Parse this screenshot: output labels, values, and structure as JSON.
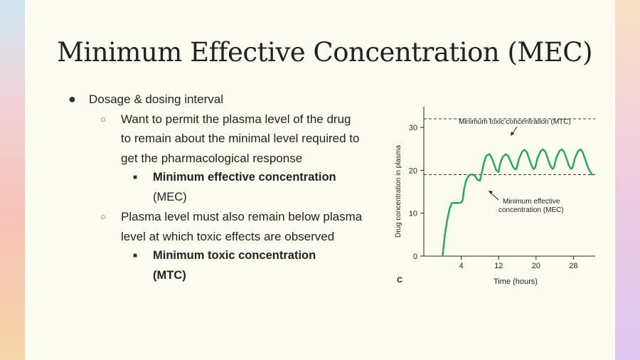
{
  "slide": {
    "title": "Minimum Effective Concentration (MEC)",
    "bullets": [
      {
        "level": 1,
        "text": "Dosage & dosing interval"
      },
      {
        "level": 2,
        "text": "Want to permit the plasma level of the drug to remain about the minimal level required to get the pharmacological response"
      },
      {
        "level": 3,
        "text": "Minimum effective concentration",
        "rest": " (MEC)"
      },
      {
        "level": 2,
        "text": "Plasma level must also remain below plasma level at which toxic effects are observed"
      },
      {
        "level": 3,
        "text": "Minimum toxic concentration (MTC)",
        "rest": ""
      }
    ]
  },
  "chart_data": {
    "type": "line",
    "panel_label": "C",
    "xlabel": "Time (hours)",
    "ylabel": "Drug concentration in plasma",
    "xlim": [
      -4,
      36
    ],
    "ylim": [
      0,
      34
    ],
    "xticks": [
      4,
      12,
      20,
      28
    ],
    "yticks": [
      0,
      10,
      20,
      30
    ],
    "reference_lines": [
      {
        "name": "Minimum toxic concentration (MTC)",
        "y": 32
      },
      {
        "name": "Minimum effective concentration (MEC)",
        "y": 19
      }
    ],
    "series": [
      {
        "color": "#2fa659",
        "x": [
          0,
          0.5,
          1,
          1.5,
          2,
          3,
          3.5,
          4,
          4.3,
          4.6,
          5,
          5.5,
          6,
          6.5,
          7,
          7.5,
          8,
          8.3,
          8.8,
          9.3,
          10,
          10.5,
          11,
          11.5,
          12,
          12.3,
          12.8,
          13.5,
          14,
          14.5,
          15,
          15.5,
          15.8,
          16.3,
          17,
          17.5,
          18,
          18.5,
          19,
          19.5,
          19.8,
          20.3,
          21,
          21.5,
          22,
          22.5,
          23,
          23.5,
          23.8,
          24.3,
          25,
          25.5,
          26,
          26.5,
          27,
          27.5,
          27.8,
          28.3,
          29,
          29.5,
          30,
          30.5,
          31,
          31.5,
          32
        ],
        "y": [
          0,
          5,
          8.5,
          11,
          12.4,
          12.4,
          12.4,
          12.5,
          13,
          15.5,
          17.5,
          18.6,
          19,
          19,
          18.6,
          17.8,
          17.6,
          19,
          21.5,
          23.3,
          23.8,
          23,
          21.5,
          20,
          19.6,
          21.5,
          23,
          23.8,
          23.4,
          22.2,
          21,
          20.2,
          20.3,
          22.5,
          24.3,
          24.8,
          24.3,
          22.8,
          21.2,
          20.3,
          20.6,
          22.8,
          24.5,
          24.9,
          24.3,
          22.8,
          21.2,
          20.3,
          20.6,
          22.8,
          24.5,
          24.9,
          24.3,
          22.8,
          21.2,
          20.3,
          20.6,
          22.8,
          24.5,
          24.9,
          24.2,
          22.6,
          21,
          19.8,
          19
        ]
      }
    ]
  },
  "colors": {
    "slide_background": "#fdfcf0",
    "curve": "#2fa659",
    "text": "#222222"
  }
}
